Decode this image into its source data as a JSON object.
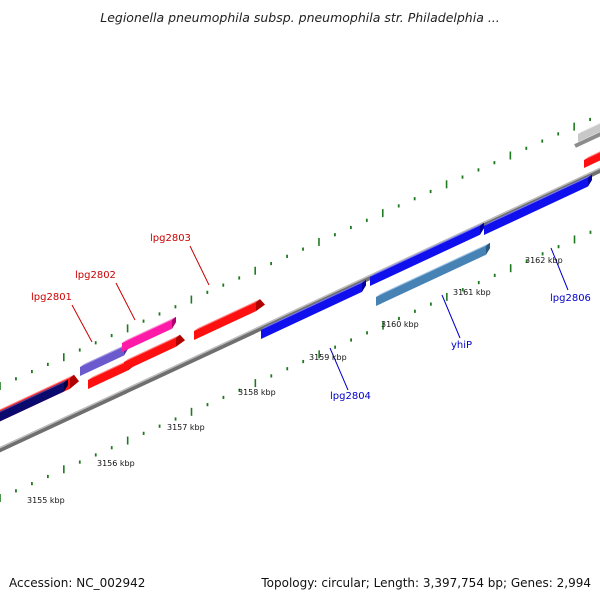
{
  "title": "Legionella pneumophila subsp. pneumophila str. Philadelphia ...",
  "footer": {
    "accession": "Accession: NC_002942",
    "summary": "Topology: circular; Length: 3,397,754 bp; Genes: 2,994"
  },
  "colors": {
    "backbone": "#8c8c8c",
    "ticks": "#1f7a1f",
    "forward_gene": "#ff0000",
    "reverse_gene": "#0000ff",
    "label_forward": "#cc0000",
    "label_reverse": "#0000cc"
  },
  "ruler": {
    "unit": "kbp",
    "labels": [
      "3155 kbp",
      "3156 kbp",
      "3157 kbp",
      "3158 kbp",
      "3159 kbp",
      "3160 kbp",
      "3161 kbp",
      "3162 kbp"
    ]
  },
  "gene_labels": [
    {
      "text": "lpg2801",
      "color": "#cc0000"
    },
    {
      "text": "lpg2802",
      "color": "#cc0000"
    },
    {
      "text": "lpg2803",
      "color": "#cc0000"
    },
    {
      "text": "lpg2804",
      "color": "#0000cc"
    },
    {
      "text": "yhiP",
      "color": "#0000cc"
    },
    {
      "text": "lpg2806",
      "color": "#0000cc"
    }
  ]
}
